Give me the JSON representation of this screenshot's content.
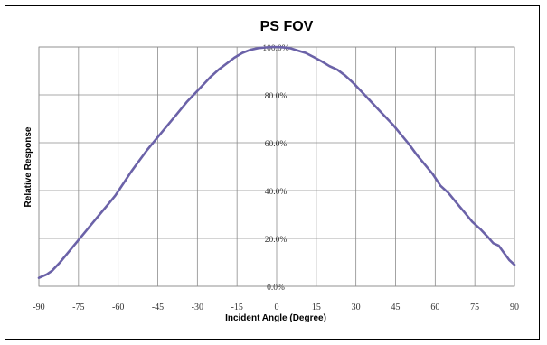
{
  "chart_data": {
    "type": "line",
    "title": "PS FOV",
    "xlabel": "Incident Angle (Degree)",
    "ylabel": "Relative Response",
    "xlim": [
      -90,
      90
    ],
    "ylim": [
      0,
      100
    ],
    "x_ticks": [
      "-90",
      "-75",
      "-60",
      "-45",
      "-30",
      "-15",
      "0",
      "15",
      "30",
      "45",
      "60",
      "75",
      "90"
    ],
    "y_ticks": [
      "0.0%",
      "20.0%",
      "40.0%",
      "60.0%",
      "80.0%",
      "100.0%"
    ],
    "grid": true,
    "legend": "none",
    "line_color": "#6b62a8",
    "series": [
      {
        "x": [
          -90,
          -87,
          -85,
          -82,
          -79,
          -76,
          -73,
          -70,
          -67,
          -64,
          -61,
          -58,
          -55,
          -52,
          -49,
          -46,
          -43,
          -40,
          -37,
          -34,
          -31,
          -28,
          -25,
          -22,
          -19,
          -16,
          -13,
          -10,
          -7,
          -4,
          -1,
          2,
          5,
          8,
          11,
          14,
          17,
          20,
          23,
          26,
          29,
          32,
          35,
          38,
          41,
          44,
          47,
          50,
          53,
          56,
          59,
          62,
          65,
          68,
          71,
          74,
          77,
          80,
          82,
          84,
          86,
          88,
          90
        ],
        "y": [
          3.5,
          5,
          6.5,
          10,
          14,
          18,
          22,
          26,
          30,
          34,
          38,
          43,
          48,
          52.5,
          57,
          61,
          65,
          69,
          73,
          77,
          80.5,
          84,
          87.5,
          90.5,
          93,
          95.5,
          97.5,
          98.8,
          99.5,
          99.8,
          100,
          99.9,
          99.5,
          98.5,
          97.5,
          95.8,
          94,
          92,
          90.5,
          88,
          85,
          81.5,
          78,
          74.5,
          71,
          67.5,
          63.5,
          59.5,
          55,
          51,
          47,
          42,
          39,
          35,
          31,
          27,
          24,
          20.5,
          18,
          17,
          14,
          11,
          9
        ]
      }
    ]
  }
}
